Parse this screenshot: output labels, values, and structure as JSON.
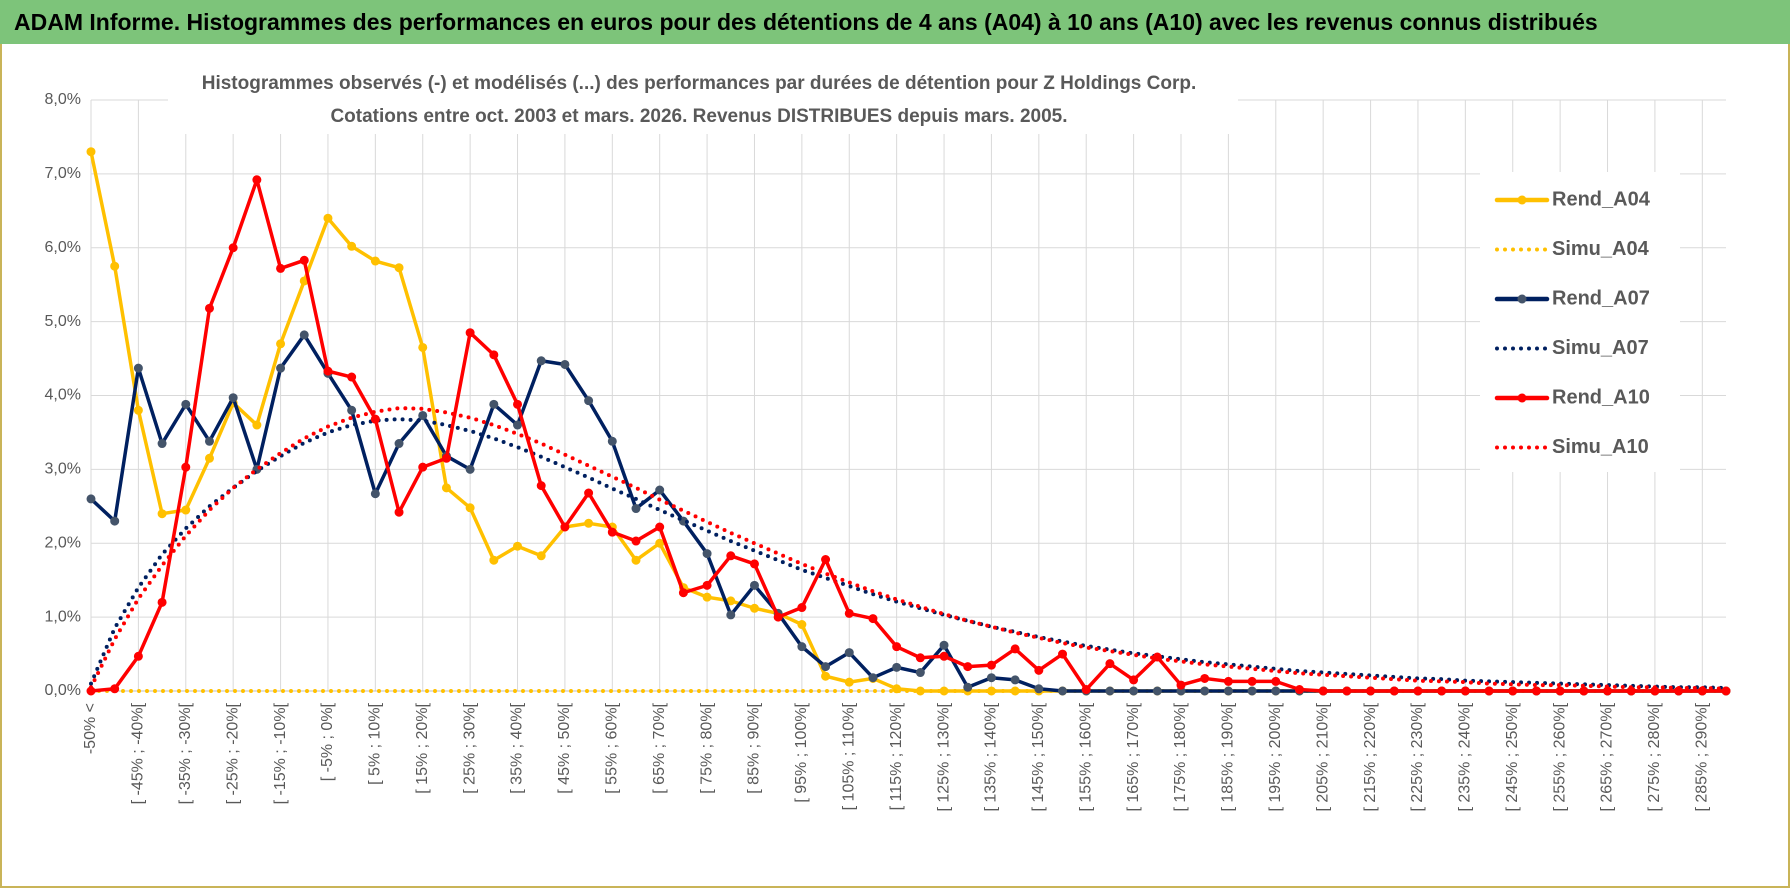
{
  "header": {
    "title": "ADAM Informe. Histogrammes des performances en euros pour des détentions de 4 ans (A04) à 10 ans (A10) avec les revenus connus distribués"
  },
  "chart_data": {
    "type": "line",
    "title": "Histogrammes observés (-) et modélisés (...) des performances par durées de détention pour Z Holdings Corp.",
    "subtitle": "Cotations entre oct. 2003 et mars. 2026. Revenus DISTRIBUES depuis mars. 2005.",
    "categories": [
      "-50% <",
      null,
      "[ -45% ; -40%[",
      null,
      "[ -35% ; -30%[",
      null,
      "[ -25% ; -20%[",
      null,
      "[ -15% ; -10%[",
      null,
      "[ -5% ; 0%[",
      null,
      "[ 5% ; 10%[",
      null,
      "[ 15% ; 20%[",
      null,
      "[ 25% ; 30%[",
      null,
      "[ 35% ; 40%[",
      null,
      "[ 45% ; 50%[",
      null,
      "[ 55% ; 60%[",
      null,
      "[ 65% ; 70%[",
      null,
      "[ 75% ; 80%[",
      null,
      "[ 85% ; 90%[",
      null,
      "[ 95% ; 100%[",
      null,
      "[ 105% ; 110%[",
      null,
      "[ 115% ; 120%[",
      null,
      "[ 125% ; 130%[",
      null,
      "[ 135% ; 140%[",
      null,
      "[ 145% ; 150%[",
      null,
      "[ 155% ; 160%[",
      null,
      "[ 165% ; 170%[",
      null,
      "[ 175% ; 180%[",
      null,
      "[ 185% ; 190%[",
      null,
      "[ 195% ; 200%[",
      null,
      "[ 205% ; 210%[",
      null,
      "[ 215% ; 220%[",
      null,
      "[ 225% ; 230%[",
      null,
      "[ 235% ; 240%[",
      null,
      "[ 245% ; 250%[",
      null,
      "[ 255% ; 260%[",
      null,
      "[ 265% ; 270%[",
      null,
      "[ 275% ; 280%[",
      null,
      "[ 285% ; 290%[",
      null
    ],
    "series": [
      {
        "name": "Rend_A04",
        "color": "#FFC000",
        "style": "solid",
        "values": [
          7.3,
          5.75,
          3.8,
          2.4,
          2.45,
          3.15,
          3.9,
          3.6,
          4.7,
          5.55,
          6.4,
          6.02,
          5.82,
          5.73,
          4.65,
          2.75,
          2.48,
          1.77,
          1.96,
          1.83,
          2.22,
          2.27,
          2.22,
          1.77,
          2.0,
          1.4,
          1.27,
          1.22,
          1.12,
          1.05,
          0.9,
          0.2,
          0.12,
          0.17,
          0.03,
          0,
          0,
          0,
          0,
          0,
          0,
          0,
          0,
          0,
          0,
          0,
          0,
          0,
          0,
          0,
          0,
          0,
          0,
          0,
          0,
          0,
          0,
          0,
          0,
          0,
          0,
          0,
          0,
          0,
          0,
          0,
          0,
          0,
          0,
          0
        ]
      },
      {
        "name": "Simu_A04",
        "color": "#FFC000",
        "style": "dotted",
        "values": [
          0,
          0,
          0,
          0,
          0,
          0,
          0,
          0,
          0,
          0,
          0,
          0,
          0,
          0,
          0,
          0,
          0,
          0,
          0,
          0,
          0,
          0,
          0,
          0,
          0,
          0,
          0,
          0,
          0,
          0,
          0,
          0,
          0,
          0,
          0,
          0,
          0,
          0,
          0,
          0,
          0,
          0,
          0,
          0,
          0,
          0,
          0,
          0,
          0,
          0,
          0,
          0,
          0,
          0,
          0,
          0,
          0,
          0,
          0,
          0,
          0,
          0,
          0,
          0,
          0,
          0,
          0,
          0,
          0,
          0
        ]
      },
      {
        "name": "Rend_A07",
        "color": "#002060",
        "marker_color": "#44546a",
        "style": "solid",
        "values": [
          2.6,
          2.3,
          4.37,
          3.35,
          3.88,
          3.38,
          3.97,
          3.0,
          4.37,
          4.82,
          4.3,
          3.8,
          2.67,
          3.35,
          3.73,
          3.18,
          3.0,
          3.88,
          3.6,
          4.47,
          4.42,
          3.93,
          3.38,
          2.47,
          2.72,
          2.3,
          1.86,
          1.03,
          1.43,
          1.05,
          0.6,
          0.33,
          0.52,
          0.18,
          0.32,
          0.25,
          0.62,
          0.05,
          0.18,
          0.15,
          0.03,
          0,
          0,
          0,
          0,
          0,
          0,
          0,
          0,
          0,
          0,
          0,
          0,
          0,
          0,
          0,
          0,
          0,
          0,
          0,
          0,
          0,
          0,
          0,
          0,
          0,
          0,
          0,
          0,
          0
        ]
      },
      {
        "name": "Simu_A07",
        "color": "#002060",
        "style": "dotted",
        "values": [
          0.1,
          0.85,
          1.4,
          1.85,
          2.2,
          2.5,
          2.75,
          2.98,
          3.18,
          3.36,
          3.5,
          3.6,
          3.66,
          3.68,
          3.66,
          3.6,
          3.52,
          3.42,
          3.3,
          3.17,
          3.03,
          2.89,
          2.74,
          2.6,
          2.45,
          2.31,
          2.17,
          2.03,
          1.9,
          1.77,
          1.64,
          1.53,
          1.42,
          1.31,
          1.21,
          1.12,
          1.03,
          0.95,
          0.87,
          0.8,
          0.73,
          0.67,
          0.61,
          0.56,
          0.51,
          0.47,
          0.43,
          0.39,
          0.36,
          0.33,
          0.3,
          0.27,
          0.25,
          0.23,
          0.21,
          0.19,
          0.17,
          0.16,
          0.14,
          0.13,
          0.12,
          0.11,
          0.1,
          0.09,
          0.08,
          0.07,
          0.06,
          0.05,
          0.05,
          0.04
        ]
      },
      {
        "name": "Rend_A10",
        "color": "#FF0000",
        "style": "solid",
        "values": [
          0,
          0.03,
          0.47,
          1.2,
          3.03,
          5.18,
          6.0,
          6.92,
          5.72,
          5.83,
          4.33,
          4.25,
          3.68,
          2.42,
          3.03,
          3.15,
          4.85,
          4.55,
          3.88,
          2.78,
          2.22,
          2.68,
          2.15,
          2.03,
          2.22,
          1.33,
          1.43,
          1.83,
          1.72,
          1.0,
          1.13,
          1.78,
          1.05,
          0.98,
          0.6,
          0.45,
          0.47,
          0.33,
          0.35,
          0.57,
          0.28,
          0.5,
          0.02,
          0.37,
          0.15,
          0.46,
          0.08,
          0.17,
          0.13,
          0.13,
          0.13,
          0.02,
          0,
          0,
          0,
          0,
          0,
          0,
          0,
          0,
          0,
          0,
          0,
          0,
          0,
          0,
          0,
          0,
          0,
          0
        ]
      },
      {
        "name": "Simu_A10",
        "color": "#FF0000",
        "style": "dotted",
        "values": [
          0.05,
          0.7,
          1.25,
          1.7,
          2.1,
          2.45,
          2.75,
          3.0,
          3.22,
          3.42,
          3.58,
          3.7,
          3.78,
          3.83,
          3.82,
          3.77,
          3.7,
          3.6,
          3.48,
          3.35,
          3.2,
          3.05,
          2.9,
          2.75,
          2.59,
          2.44,
          2.29,
          2.14,
          2.0,
          1.86,
          1.72,
          1.59,
          1.47,
          1.35,
          1.24,
          1.14,
          1.04,
          0.95,
          0.87,
          0.79,
          0.72,
          0.65,
          0.59,
          0.54,
          0.49,
          0.44,
          0.4,
          0.36,
          0.33,
          0.3,
          0.27,
          0.24,
          0.22,
          0.2,
          0.18,
          0.16,
          0.14,
          0.13,
          0.12,
          0.1,
          0.09,
          0.08,
          0.08,
          0.07,
          0.06,
          0.05,
          0.05,
          0.04,
          0.04,
          0.03
        ]
      }
    ],
    "ylim": [
      0,
      8
    ],
    "yticks": [
      {
        "value": 0,
        "label": "0,0%"
      },
      {
        "value": 1,
        "label": "1,0%"
      },
      {
        "value": 2,
        "label": "2,0%"
      },
      {
        "value": 3,
        "label": "3,0%"
      },
      {
        "value": 4,
        "label": "4,0%"
      },
      {
        "value": 5,
        "label": "5,0%"
      },
      {
        "value": 6,
        "label": "6,0%"
      },
      {
        "value": 7,
        "label": "7,0%"
      },
      {
        "value": 8,
        "label": "8,0%"
      }
    ],
    "grid": true,
    "legend": "right"
  }
}
